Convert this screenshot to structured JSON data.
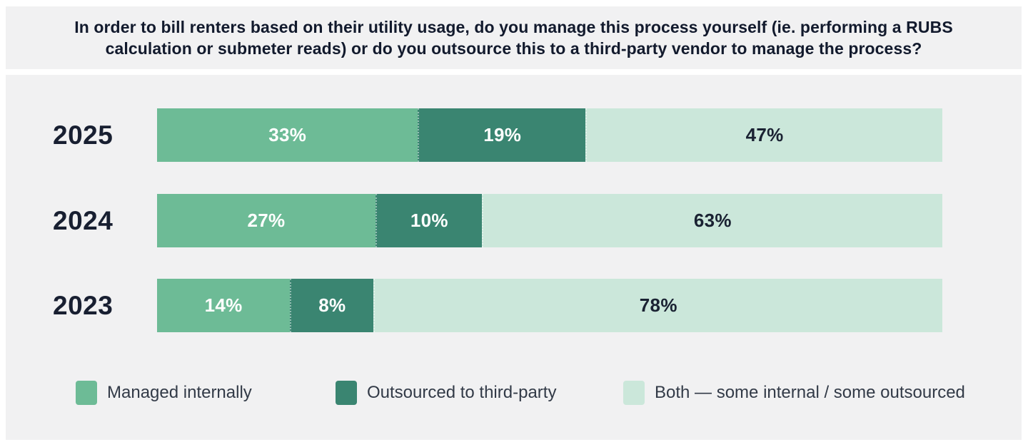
{
  "title_lines": [
    "In order to bill renters based on their utility usage, do you manage this process yourself (ie. performing a RUBS",
    "calculation or submeter reads) or do you outsource this to a third-party vendor to manage the process?"
  ],
  "colors": {
    "panel_background": "#f1f1f2",
    "page_background": "#ffffff",
    "title_text": "#121a2d",
    "year_text": "#181f31",
    "legend_text": "#323a47"
  },
  "chart_data": {
    "type": "bar",
    "stacked": true,
    "orientation": "horizontal",
    "title": "In order to bill renters based on their utility usage, do you manage this process yourself (ie. performing a RUBS calculation or submeter reads) or do you outsource this to a third-party vendor to manage the process?",
    "categories": [
      "2025",
      "2024",
      "2023"
    ],
    "series": [
      {
        "name": "Managed internally",
        "color": "#6dbb96",
        "label_color": "#ffffff",
        "values": [
          33,
          27,
          14
        ]
      },
      {
        "name": "Outsourced to third-party",
        "color": "#3a8571",
        "label_color": "#ffffff",
        "values": [
          19,
          10,
          8
        ]
      },
      {
        "name": "Both — some internal / some outsourced",
        "color": "#cbe7da",
        "label_color": "#1a2232",
        "values": [
          47,
          63,
          78
        ]
      }
    ],
    "value_suffix": "%",
    "xlim": [
      0,
      100
    ],
    "grid": false,
    "legend_position": "bottom"
  },
  "layout_hints": {
    "row_tops": [
      47,
      167,
      286
    ],
    "legend_lefts": [
      98,
      462,
      865
    ]
  }
}
